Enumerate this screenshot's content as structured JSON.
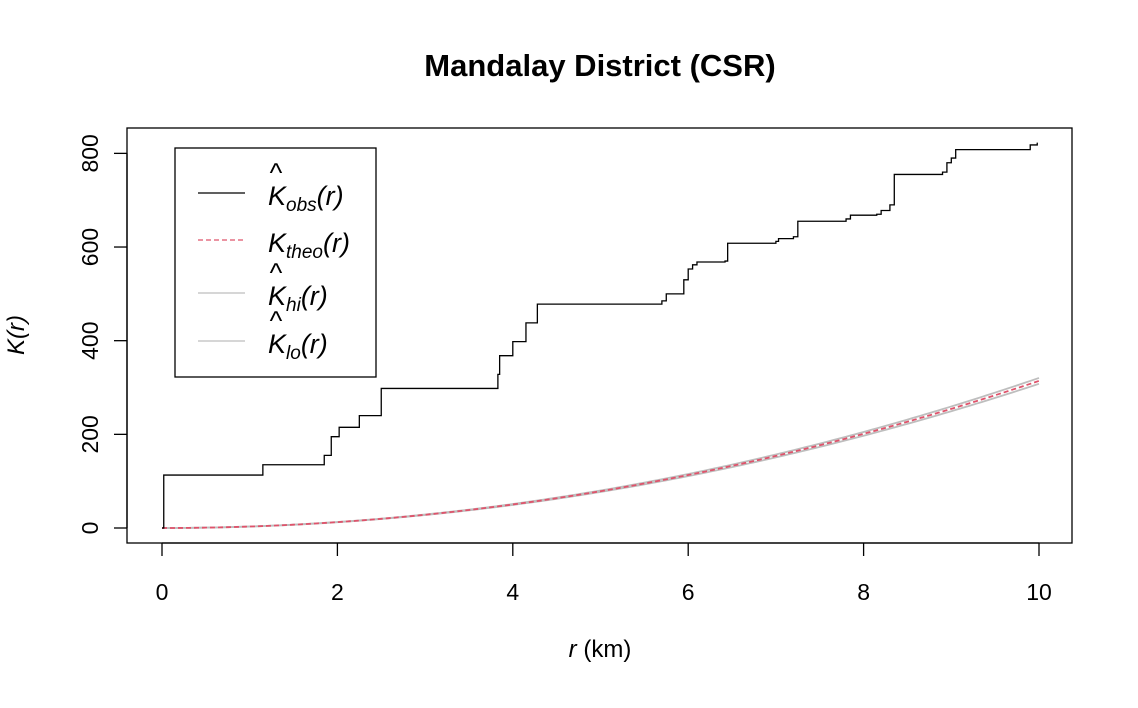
{
  "chart_data": {
    "type": "line",
    "title": "Mandalay District (CSR)",
    "xlabel": {
      "var": "r",
      "unit": " (km)"
    },
    "ylabel": {
      "main": "K",
      "arg": "(r)"
    },
    "xlim": [
      0,
      10
    ],
    "ylim": [
      0,
      820
    ],
    "x_ticks": [
      0,
      2,
      4,
      6,
      8,
      10
    ],
    "y_ticks": [
      0,
      200,
      400,
      600,
      800
    ],
    "x_tick_labels": [
      "0",
      "2",
      "4",
      "6",
      "8",
      "10"
    ],
    "y_tick_labels": [
      "0",
      "200",
      "400",
      "600",
      "800"
    ],
    "grid": false,
    "legend": {
      "position": "top-left",
      "entries": [
        {
          "base": "K",
          "hat": "^",
          "sub": "obs",
          "arg": "(r)",
          "color": "#000000",
          "dash": "solid"
        },
        {
          "base": "K",
          "hat": "",
          "sub": "theo",
          "arg": "(r)",
          "color": "#DF536B",
          "dash": "dashed"
        },
        {
          "base": "K",
          "hat": "^",
          "sub": "hi",
          "arg": "(r)",
          "color": "#BEBEBE",
          "dash": "solid"
        },
        {
          "base": "K",
          "hat": "^",
          "sub": "lo",
          "arg": "(r)",
          "color": "#BEBEBE",
          "dash": "solid"
        }
      ]
    },
    "series": [
      {
        "id": "obs",
        "step": true,
        "color": "#000000",
        "x": [
          0,
          0.02,
          1.13,
          1.15,
          1.83,
          1.85,
          1.9,
          1.93,
          2.0,
          2.02,
          2.2,
          2.25,
          2.45,
          2.5,
          3.83,
          3.85,
          3.98,
          4.0,
          4.1,
          4.15,
          4.25,
          4.28,
          5.7,
          5.75,
          5.95,
          6.0,
          6.05,
          6.1,
          6.42,
          6.45,
          7.0,
          7.03,
          7.2,
          7.25,
          7.8,
          7.85,
          8.15,
          8.2,
          8.3,
          8.35,
          8.9,
          8.95,
          9.0,
          9.05,
          9.9,
          9.98
        ],
        "y": [
          0,
          113,
          113,
          135,
          135,
          155,
          155,
          195,
          195,
          215,
          215,
          240,
          240,
          298,
          328,
          368,
          368,
          398,
          398,
          438,
          438,
          478,
          485,
          500,
          530,
          553,
          562,
          568,
          570,
          608,
          612,
          618,
          622,
          655,
          660,
          668,
          670,
          678,
          690,
          755,
          760,
          780,
          790,
          808,
          818,
          823
        ]
      },
      {
        "id": "theo",
        "func": "pi_r_squared",
        "color": "#DF536B",
        "dash": "dashed"
      },
      {
        "id": "hi",
        "func": "pi_r_squared",
        "scale": 1.02,
        "color": "#BEBEBE"
      },
      {
        "id": "lo",
        "func": "pi_r_squared",
        "scale": 0.98,
        "color": "#BEBEBE"
      }
    ]
  }
}
